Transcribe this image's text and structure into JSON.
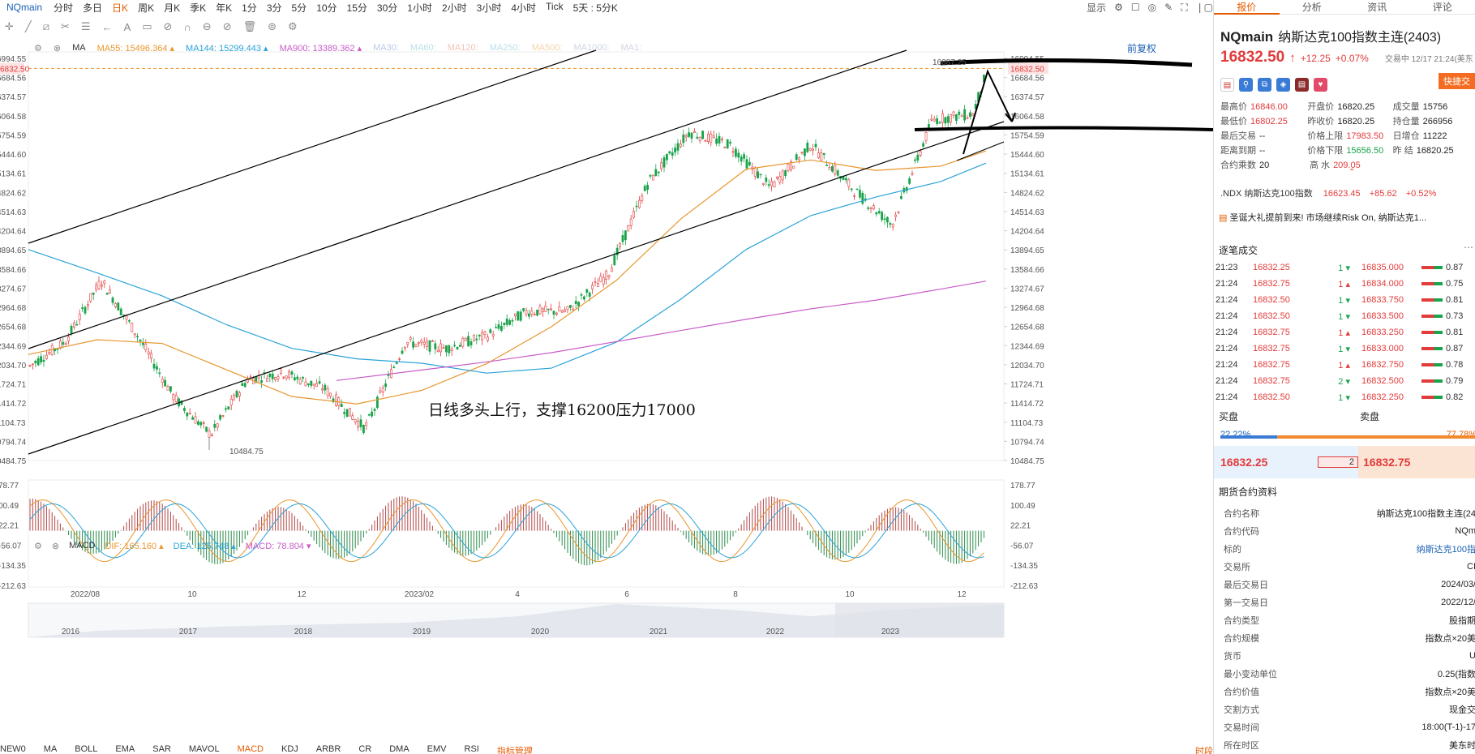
{
  "topbar": {
    "symbol": "NQmain",
    "periods": [
      "分时",
      "多日",
      "日K",
      "周K",
      "月K",
      "季K",
      "年K",
      "1分",
      "3分",
      "5分",
      "10分",
      "15分",
      "30分",
      "1小时",
      "2小时",
      "3小时",
      "4小时",
      "Tick",
      "5天 : 5分K"
    ],
    "active_period": "日K",
    "display_label": "显示"
  },
  "indicators": {
    "main_name": "MA",
    "ma": [
      {
        "label": "MA55:",
        "value": "15496.364",
        "color": "#e8962e"
      },
      {
        "label": "MA144:",
        "value": "15299.443",
        "color": "#2aa3d8"
      },
      {
        "label": "MA900:",
        "value": "13389.362",
        "color": "#c75bc7"
      },
      {
        "label": "MA30:",
        "value": "",
        "color": "#b9cbe6"
      },
      {
        "label": "MA60:",
        "value": "",
        "color": "#b9e0e6"
      },
      {
        "label": "MA120:",
        "value": "",
        "color": "#f0c4b8"
      },
      {
        "label": "MA250:",
        "value": "",
        "color": "#b8e0ea"
      },
      {
        "label": "MA500:",
        "value": "",
        "color": "#f4d3a8"
      },
      {
        "label": "MA1000:",
        "value": "",
        "color": "#cfd5e0"
      },
      {
        "label": "MA1:",
        "value": "",
        "color": "#cfd5e0"
      }
    ],
    "adjust_label": "前复权",
    "macd": {
      "name": "MACD",
      "dif_label": "DIF:",
      "dif": "165.160",
      "dea_label": "DEA:",
      "dea": "125.748",
      "macd_label": "MACD:",
      "macd": "78.804"
    }
  },
  "chart_data": [
    {
      "type": "candlestick",
      "title": "",
      "annotation": "日线多头上行，支撑16200压力17000",
      "high_label": "16887.25",
      "low_label": "10484.75",
      "current_price": "16832.50",
      "y_ticks": [
        "16994.55",
        "16684.56",
        "16374.57",
        "16064.58",
        "15754.59",
        "15444.60",
        "15134.61",
        "14824.62",
        "14514.63",
        "14204.64",
        "13894.65",
        "13584.66",
        "13274.67",
        "12964.68",
        "12654.68",
        "12344.69",
        "12034.70",
        "11724.71",
        "11414.72",
        "11104.73",
        "10794.74",
        "10484.75"
      ],
      "ylim": [
        10484.75,
        16994.55
      ],
      "x_ticks": [
        "2022/08",
        "10",
        "12",
        "2023/02",
        "4",
        "6",
        "8",
        "10",
        "12"
      ],
      "overview_years": [
        "2016",
        "2017",
        "2018",
        "2019",
        "2020",
        "2021",
        "2022",
        "2023"
      ],
      "series": [
        {
          "name": "MA55",
          "x": [
            35,
            120,
            200,
            280,
            360,
            440,
            520,
            600,
            680,
            760,
            840,
            920,
            1000,
            1080,
            1160,
            1216
          ],
          "y": [
            12200,
            12440,
            12380,
            11950,
            11520,
            11400,
            11620,
            12050,
            12650,
            13400,
            14400,
            15200,
            15350,
            15180,
            15250,
            15496
          ]
        },
        {
          "name": "MA144",
          "x": [
            35,
            120,
            200,
            280,
            360,
            440,
            520,
            600,
            680,
            760,
            840,
            920,
            1000,
            1080,
            1160,
            1216
          ],
          "y": [
            13900,
            13520,
            13150,
            12680,
            12300,
            12130,
            12060,
            11900,
            11980,
            12400,
            13100,
            13900,
            14450,
            14750,
            15000,
            15299
          ]
        },
        {
          "name": "MA900",
          "x": [
            415,
            520,
            600,
            680,
            760,
            840,
            920,
            1000,
            1080,
            1160,
            1216
          ],
          "y": [
            11780,
            11950,
            12080,
            12230,
            12410,
            12590,
            12770,
            12940,
            13080,
            13260,
            13389
          ]
        }
      ]
    },
    {
      "type": "macd",
      "y_ticks": [
        "178.77",
        "100.49",
        "22.21",
        "-56.07",
        "-134.35",
        "-212.63"
      ],
      "ylim": [
        -212.63,
        178.77
      ]
    }
  ],
  "panel": {
    "tabs": [
      "报价",
      "分析",
      "资讯",
      "评论"
    ],
    "code": "NQmain",
    "name": "纳斯达克100指数主连(2403)",
    "price": "16832.50",
    "arrow": "↑",
    "change": "+12.25",
    "change_pct": "+0.07%",
    "status": "交易中 12/17 21:24(美东",
    "quick_label": "快捷交",
    "stats": [
      [
        {
          "k": "最高价",
          "v": "16846.00",
          "c": "red"
        },
        {
          "k": "开盘价",
          "v": "16820.25",
          "c": "dark"
        },
        {
          "k": "成交量",
          "v": "15756",
          "c": "dark"
        }
      ],
      [
        {
          "k": "最低价",
          "v": "16802.25",
          "c": "red"
        },
        {
          "k": "昨收价",
          "v": "16820.25",
          "c": "dark"
        },
        {
          "k": "持仓量",
          "v": "266956",
          "c": "dark"
        }
      ],
      [
        {
          "k": "最后交易",
          "v": "--",
          "c": "dark"
        },
        {
          "k": "价格上限",
          "v": "17983.50",
          "c": "red"
        },
        {
          "k": "日增仓",
          "v": "11222",
          "c": "dark"
        }
      ],
      [
        {
          "k": "距离到期",
          "v": "--",
          "c": "dark"
        },
        {
          "k": "价格下限",
          "v": "15656.50",
          "c": "green"
        },
        {
          "k": "昨 结",
          "v": "16820.25",
          "c": "dark"
        }
      ],
      [
        {
          "k": "合约乘数",
          "v": "20",
          "c": "dark"
        },
        {
          "k": "高 水",
          "v": "209.05",
          "c": "red"
        }
      ]
    ],
    "ndx": {
      "label": ".NDX 纳斯达克100指数",
      "value": "16623.45",
      "change": "+85.62",
      "pct": "+0.52%"
    },
    "news": "圣诞大礼提前到来! 市场继续Risk On, 纳斯达克1...",
    "trades_title": "逐笔成交",
    "trades": [
      {
        "t": "21:23",
        "p": "16832.25",
        "v": "1",
        "d": "down",
        "bp": "16835.000",
        "bv": "0.87"
      },
      {
        "t": "21:24",
        "p": "16832.75",
        "v": "1",
        "d": "up",
        "bp": "16834.000",
        "bv": "0.75"
      },
      {
        "t": "21:24",
        "p": "16832.50",
        "v": "1",
        "d": "down",
        "bp": "16833.750",
        "bv": "0.81"
      },
      {
        "t": "21:24",
        "p": "16832.50",
        "v": "1",
        "d": "down",
        "bp": "16833.500",
        "bv": "0.73"
      },
      {
        "t": "21:24",
        "p": "16832.75",
        "v": "1",
        "d": "up",
        "bp": "16833.250",
        "bv": "0.81"
      },
      {
        "t": "21:24",
        "p": "16832.75",
        "v": "1",
        "d": "down",
        "bp": "16833.000",
        "bv": "0.87"
      },
      {
        "t": "21:24",
        "p": "16832.75",
        "v": "1",
        "d": "up",
        "bp": "16832.750",
        "bv": "0.78"
      },
      {
        "t": "21:24",
        "p": "16832.75",
        "v": "2",
        "d": "down",
        "bp": "16832.500",
        "bv": "0.79"
      },
      {
        "t": "21:24",
        "p": "16832.50",
        "v": "1",
        "d": "down",
        "bp": "16832.250",
        "bv": "0.82"
      }
    ],
    "buy_label": "买盘",
    "sell_label": "卖盘",
    "buy_pct": "22.22%",
    "sell_pct": "77.78%",
    "bid": "16832.25",
    "bid_qty": "2",
    "ask": "16832.75",
    "info_title": "期货合约资料",
    "info": [
      {
        "k": "合约名称",
        "v": "纳斯达克100指数主连(24"
      },
      {
        "k": "合约代码",
        "v": "NQm"
      },
      {
        "k": "标的",
        "v": "纳斯达克100指",
        "link": true
      },
      {
        "k": "交易所",
        "v": "CI"
      },
      {
        "k": "最后交易日",
        "v": "2024/03/"
      },
      {
        "k": "第一交易日",
        "v": "2022/12/"
      },
      {
        "k": "合约类型",
        "v": "股指期"
      },
      {
        "k": "合约规模",
        "v": "指数点×20美"
      },
      {
        "k": "货币",
        "v": "U"
      },
      {
        "k": "最小变动单位",
        "v": "0.25(指数"
      },
      {
        "k": "合约价值",
        "v": "指数点×20美"
      },
      {
        "k": "交割方式",
        "v": "现金交"
      },
      {
        "k": "交易时间",
        "v": "18:00(T-1)-17"
      },
      {
        "k": "所在时区",
        "v": "美东时"
      }
    ]
  },
  "bottom_tabs": [
    "NEW0",
    "MA",
    "BOLL",
    "EMA",
    "SAR",
    "MAVOL",
    "MACD",
    "KDJ",
    "ARBR",
    "CR",
    "DMA",
    "EMV",
    "RSI",
    "指标管理"
  ],
  "bottom_active": "MACD",
  "bottom_right": "时段"
}
